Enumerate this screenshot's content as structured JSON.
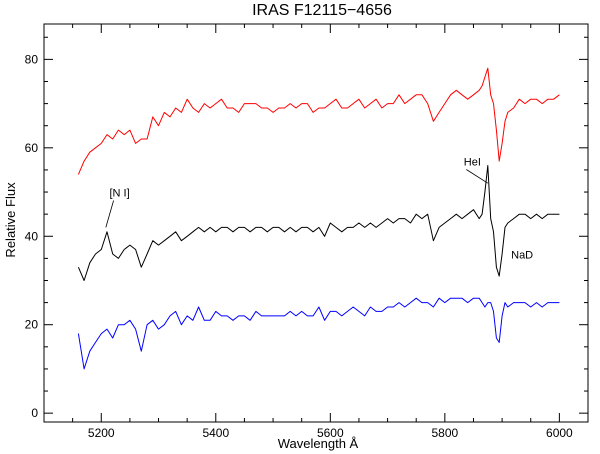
{
  "chart_data": {
    "type": "line",
    "title": "IRAS F12115−4656",
    "xlabel": "Wavelength Å",
    "ylabel": "Relative Flux",
    "xlim": [
      5100,
      6050
    ],
    "ylim": [
      -2,
      88
    ],
    "xticks": [
      5200,
      5400,
      5600,
      5800,
      6000
    ],
    "yticks": [
      0,
      20,
      40,
      60,
      80
    ],
    "grid": false,
    "series": [
      {
        "color": "#ff0000",
        "x": [
          5160,
          5170,
          5180,
          5190,
          5200,
          5210,
          5220,
          5230,
          5240,
          5250,
          5260,
          5270,
          5280,
          5290,
          5300,
          5310,
          5320,
          5330,
          5340,
          5350,
          5360,
          5370,
          5380,
          5390,
          5400,
          5410,
          5420,
          5430,
          5440,
          5450,
          5460,
          5470,
          5480,
          5490,
          5500,
          5510,
          5520,
          5530,
          5540,
          5550,
          5560,
          5570,
          5580,
          5590,
          5600,
          5610,
          5620,
          5630,
          5640,
          5650,
          5660,
          5670,
          5680,
          5690,
          5700,
          5710,
          5720,
          5730,
          5740,
          5750,
          5760,
          5770,
          5780,
          5790,
          5800,
          5810,
          5820,
          5830,
          5840,
          5850,
          5860,
          5865,
          5870,
          5875,
          5880,
          5885,
          5890,
          5895,
          5900,
          5905,
          5910,
          5920,
          5930,
          5940,
          5950,
          5960,
          5970,
          5980,
          5990,
          6000
        ],
        "values": [
          54,
          57,
          59,
          60,
          61,
          63,
          62,
          64,
          63,
          64,
          61,
          62,
          62,
          67,
          65,
          68,
          67,
          69,
          68,
          71,
          69,
          68,
          70,
          69,
          70,
          71,
          69,
          69,
          68,
          70,
          70,
          70,
          69,
          69,
          68,
          69,
          69,
          70,
          69,
          70,
          70,
          68,
          69,
          69,
          70,
          71,
          69,
          69,
          70,
          71,
          69,
          70,
          71,
          69,
          70,
          70,
          72,
          70,
          71,
          72,
          72,
          70,
          66,
          68,
          70,
          72,
          73,
          72,
          71,
          72,
          73,
          74,
          76,
          78,
          72,
          70,
          64,
          57,
          61,
          66,
          68,
          69,
          71,
          70,
          71,
          71,
          70,
          71,
          71,
          72
        ]
      },
      {
        "color": "#000000",
        "x": [
          5160,
          5170,
          5180,
          5190,
          5200,
          5210,
          5220,
          5230,
          5240,
          5250,
          5260,
          5270,
          5280,
          5290,
          5300,
          5310,
          5320,
          5330,
          5340,
          5350,
          5360,
          5370,
          5380,
          5390,
          5400,
          5410,
          5420,
          5430,
          5440,
          5450,
          5460,
          5470,
          5480,
          5490,
          5500,
          5510,
          5520,
          5530,
          5540,
          5550,
          5560,
          5570,
          5580,
          5590,
          5600,
          5610,
          5620,
          5630,
          5640,
          5650,
          5660,
          5670,
          5680,
          5690,
          5700,
          5710,
          5720,
          5730,
          5740,
          5750,
          5760,
          5770,
          5780,
          5790,
          5800,
          5810,
          5820,
          5830,
          5840,
          5850,
          5860,
          5865,
          5870,
          5875,
          5880,
          5885,
          5890,
          5895,
          5900,
          5905,
          5910,
          5920,
          5930,
          5940,
          5950,
          5960,
          5970,
          5980,
          5990,
          6000
        ],
        "values": [
          33,
          30,
          34,
          36,
          37,
          41,
          36,
          35,
          37,
          38,
          37,
          33,
          36,
          39,
          38,
          39,
          40,
          41,
          39,
          40,
          41,
          42,
          41,
          42,
          41,
          42,
          42,
          41,
          42,
          42,
          41,
          42,
          42,
          41,
          42,
          42,
          41,
          42,
          41,
          42,
          42,
          41,
          42,
          40,
          43,
          42,
          41,
          42,
          42,
          43,
          42,
          43,
          42,
          43,
          44,
          43,
          44,
          44,
          43,
          45,
          44,
          45,
          39,
          42,
          43,
          44,
          45,
          44,
          45,
          46,
          44,
          45,
          50,
          56,
          44,
          41,
          33,
          31,
          36,
          42,
          43,
          44,
          45,
          45,
          44,
          45,
          44,
          45,
          45,
          45
        ]
      },
      {
        "color": "#0000ff",
        "x": [
          5160,
          5170,
          5180,
          5190,
          5200,
          5210,
          5220,
          5230,
          5240,
          5250,
          5260,
          5270,
          5280,
          5290,
          5300,
          5310,
          5320,
          5330,
          5340,
          5350,
          5360,
          5370,
          5380,
          5390,
          5400,
          5410,
          5420,
          5430,
          5440,
          5450,
          5460,
          5470,
          5480,
          5490,
          5500,
          5510,
          5520,
          5530,
          5540,
          5550,
          5560,
          5570,
          5580,
          5590,
          5600,
          5610,
          5620,
          5630,
          5640,
          5650,
          5660,
          5670,
          5680,
          5690,
          5700,
          5710,
          5720,
          5730,
          5740,
          5750,
          5760,
          5770,
          5780,
          5790,
          5800,
          5810,
          5820,
          5830,
          5840,
          5850,
          5860,
          5865,
          5870,
          5875,
          5880,
          5885,
          5890,
          5895,
          5900,
          5905,
          5910,
          5920,
          5930,
          5940,
          5950,
          5960,
          5970,
          5980,
          5990,
          6000
        ],
        "values": [
          18,
          10,
          14,
          16,
          18,
          19,
          17,
          20,
          20,
          21,
          19,
          14,
          20,
          21,
          19,
          20,
          22,
          23,
          20,
          22,
          21,
          24,
          21,
          21,
          23,
          22,
          22,
          21,
          22,
          22,
          21,
          23,
          22,
          22,
          22,
          22,
          22,
          23,
          22,
          23,
          22,
          22,
          24,
          21,
          23,
          23,
          22,
          23,
          24,
          23,
          22,
          24,
          23,
          23,
          24,
          24,
          25,
          24,
          25,
          26,
          25,
          25,
          24,
          26,
          25,
          26,
          26,
          26,
          25,
          26,
          26,
          25,
          24,
          25,
          25,
          23,
          17,
          16,
          22,
          25,
          24,
          25,
          25,
          25,
          24,
          25,
          24,
          25,
          25,
          25
        ]
      }
    ],
    "annotations": [
      {
        "text": "[N I]",
        "x": 5232,
        "y": 49,
        "line_to": [
          5208,
          42
        ]
      },
      {
        "text": "HeI",
        "x": 5848,
        "y": 56,
        "line_to": [
          5875,
          52
        ]
      },
      {
        "text": "NaD",
        "x": 5935,
        "y": 35
      }
    ]
  }
}
